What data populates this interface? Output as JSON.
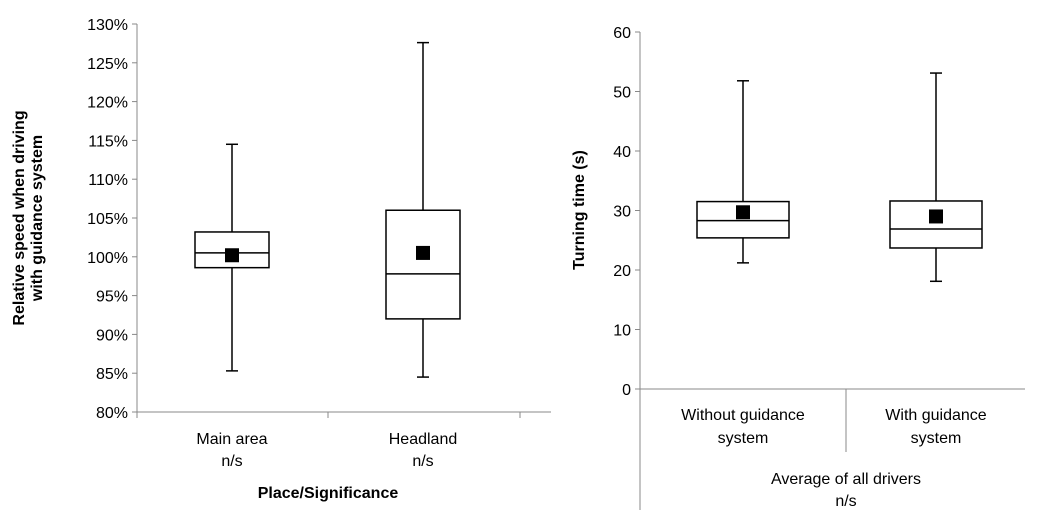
{
  "chart_data": [
    {
      "type": "boxplot",
      "ylabel_lines": [
        "Relative speed when driving",
        "with guidance system"
      ],
      "xlabel": "Place/Significance",
      "ylim": [
        0.8,
        1.3
      ],
      "yticks": [
        "80%",
        "85%",
        "90%",
        "95%",
        "100%",
        "105%",
        "110%",
        "115%",
        "120%",
        "125%",
        "130%"
      ],
      "categories": [
        {
          "lines": [
            "Main area",
            "n/s"
          ],
          "min": 0.853,
          "q1": 0.986,
          "median": 1.005,
          "q3": 1.032,
          "max": 1.145,
          "mean": 1.002
        },
        {
          "lines": [
            "Headland",
            "n/s"
          ],
          "min": 0.845,
          "q1": 0.92,
          "median": 0.978,
          "q3": 1.06,
          "max": 1.276,
          "mean": 1.005
        }
      ]
    },
    {
      "type": "boxplot",
      "ylabel": "Turning time (s)",
      "ylim": [
        0,
        60
      ],
      "yticks": [
        "0",
        "10",
        "20",
        "30",
        "40",
        "50",
        "60"
      ],
      "group_label_lines": [
        "Average of all drivers",
        "n/s"
      ],
      "categories": [
        {
          "lines": [
            "Without guidance",
            "system"
          ],
          "min": 21.2,
          "q1": 25.4,
          "median": 28.3,
          "q3": 31.5,
          "max": 51.8,
          "mean": 29.7
        },
        {
          "lines": [
            "With guidance",
            "system"
          ],
          "min": 18.1,
          "q1": 23.7,
          "median": 26.9,
          "q3": 31.6,
          "max": 53.1,
          "mean": 29.0
        }
      ]
    }
  ]
}
